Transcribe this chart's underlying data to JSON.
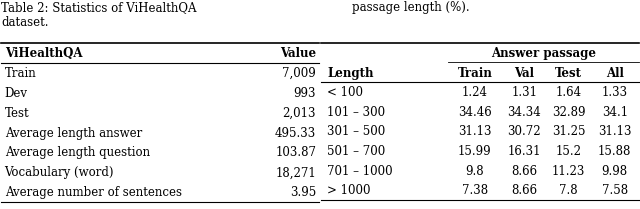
{
  "table1": {
    "caption": "Table 2: Statistics of ViHealthQA\ndataset.",
    "headers": [
      "ViHealthQA",
      "Value"
    ],
    "rows": [
      [
        "Train",
        "7,009"
      ],
      [
        "Dev",
        "993"
      ],
      [
        "Test",
        "2,013"
      ],
      [
        "Average length answer",
        "495.33"
      ],
      [
        "Average length question",
        "103.87"
      ],
      [
        "Vocabulary (word)",
        "18,271"
      ],
      [
        "Average number of sentences",
        "3.95"
      ]
    ]
  },
  "table2": {
    "caption": "passage length (%).",
    "group_header": "Answer passage",
    "col_header": [
      "Length",
      "Train",
      "Val",
      "Test",
      "All"
    ],
    "rows": [
      [
        "< 100",
        "1.24",
        "1.31",
        "1.64",
        "1.33"
      ],
      [
        "101 – 300",
        "34.46",
        "34.34",
        "32.89",
        "34.1"
      ],
      [
        "301 – 500",
        "31.13",
        "30.72",
        "31.25",
        "31.13"
      ],
      [
        "501 – 700",
        "15.99",
        "16.31",
        "15.2",
        "15.88"
      ],
      [
        "701 – 1000",
        "9.8",
        "8.66",
        "11.23",
        "9.98"
      ],
      [
        "> 1000",
        "7.38",
        "8.66",
        "7.8",
        "7.58"
      ]
    ]
  },
  "bg_color": "#ffffff",
  "text_color": "#000000",
  "font_size": 8.5
}
